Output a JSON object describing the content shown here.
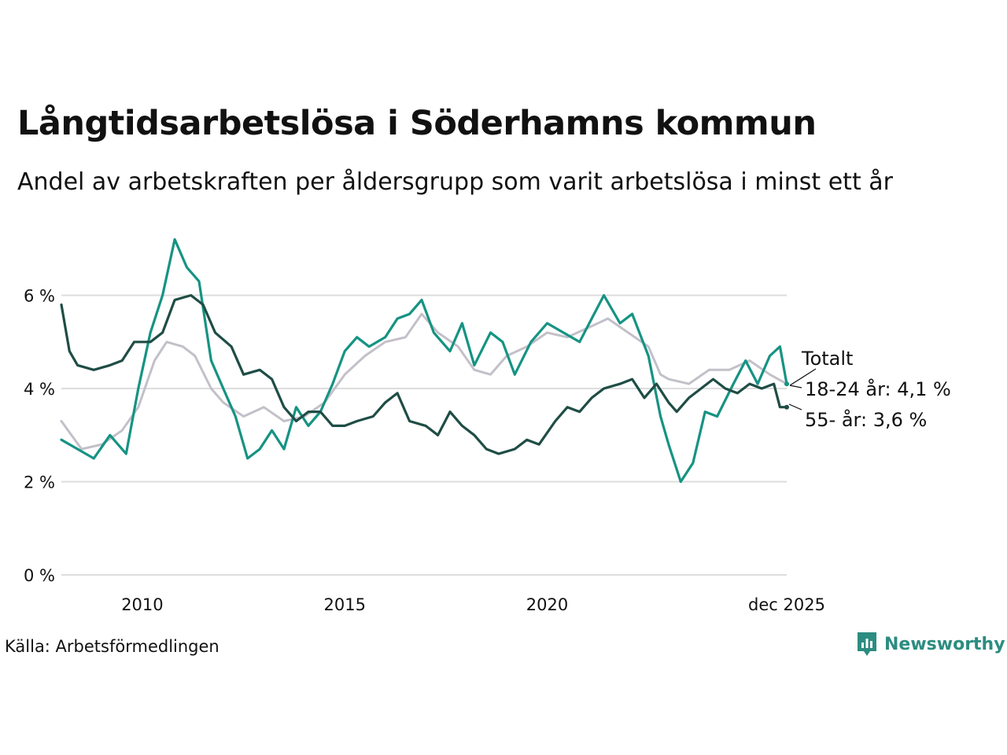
{
  "title": "Långtidsarbetslösa i Söderhamns kommun",
  "subtitle": "Andel av arbetskraften per åldersgrupp som varit arbetslösa i minst ett år",
  "source": "Källa: Arbetsförmedlingen",
  "brand": "Newsworthy",
  "colors": {
    "totalt": "#c3c0c9",
    "age_18_24": "#169383",
    "age_55": "#1f4d45",
    "grid": "#dddddd",
    "brand": "#2c8c80"
  },
  "chart_data": {
    "type": "line",
    "title": "Långtidsarbetslösa i Söderhamns kommun",
    "xlabel": "",
    "ylabel": "",
    "ylim": [
      0,
      7.5
    ],
    "yticks": [
      0,
      2,
      4,
      6
    ],
    "ytick_labels": [
      "0 %",
      "2 %",
      "4 %",
      "6 %"
    ],
    "xticks": [
      2010,
      2015,
      2020,
      2025.917
    ],
    "xtick_labels": [
      "2010",
      "2015",
      "2020",
      "dec 2025"
    ],
    "grid": true,
    "end_labels": {
      "totalt": "Totalt",
      "age_18_24": "18-24 år: 4,1 %",
      "age_55": "55- år: 3,6 %"
    },
    "series": [
      {
        "name": "Totalt",
        "key": "totalt",
        "points": [
          [
            2008.0,
            3.3
          ],
          [
            2008.5,
            2.7
          ],
          [
            2009.0,
            2.8
          ],
          [
            2009.5,
            3.1
          ],
          [
            2009.9,
            3.6
          ],
          [
            2010.3,
            4.6
          ],
          [
            2010.6,
            5.0
          ],
          [
            2011.0,
            4.9
          ],
          [
            2011.3,
            4.7
          ],
          [
            2011.7,
            4.0
          ],
          [
            2012.0,
            3.7
          ],
          [
            2012.5,
            3.4
          ],
          [
            2013.0,
            3.6
          ],
          [
            2013.5,
            3.3
          ],
          [
            2014.0,
            3.4
          ],
          [
            2014.5,
            3.7
          ],
          [
            2015.0,
            4.3
          ],
          [
            2015.5,
            4.7
          ],
          [
            2016.0,
            5.0
          ],
          [
            2016.5,
            5.1
          ],
          [
            2016.9,
            5.6
          ],
          [
            2017.3,
            5.2
          ],
          [
            2017.8,
            4.9
          ],
          [
            2018.2,
            4.4
          ],
          [
            2018.6,
            4.3
          ],
          [
            2019.0,
            4.7
          ],
          [
            2019.5,
            4.9
          ],
          [
            2020.0,
            5.2
          ],
          [
            2020.5,
            5.1
          ],
          [
            2021.0,
            5.3
          ],
          [
            2021.5,
            5.5
          ],
          [
            2022.0,
            5.2
          ],
          [
            2022.5,
            4.9
          ],
          [
            2022.8,
            4.3
          ],
          [
            2023.0,
            4.2
          ],
          [
            2023.5,
            4.1
          ],
          [
            2024.0,
            4.4
          ],
          [
            2024.5,
            4.4
          ],
          [
            2025.0,
            4.6
          ],
          [
            2025.5,
            4.3
          ],
          [
            2025.917,
            4.1
          ]
        ]
      },
      {
        "name": "18-24 år",
        "key": "age_18_24",
        "points": [
          [
            2008.0,
            2.9
          ],
          [
            2008.4,
            2.7
          ],
          [
            2008.8,
            2.5
          ],
          [
            2009.2,
            3.0
          ],
          [
            2009.6,
            2.6
          ],
          [
            2009.9,
            4.0
          ],
          [
            2010.2,
            5.2
          ],
          [
            2010.5,
            6.0
          ],
          [
            2010.8,
            7.2
          ],
          [
            2011.1,
            6.6
          ],
          [
            2011.4,
            6.3
          ],
          [
            2011.7,
            4.6
          ],
          [
            2012.0,
            4.0
          ],
          [
            2012.3,
            3.4
          ],
          [
            2012.6,
            2.5
          ],
          [
            2012.9,
            2.7
          ],
          [
            2013.2,
            3.1
          ],
          [
            2013.5,
            2.7
          ],
          [
            2013.8,
            3.6
          ],
          [
            2014.1,
            3.2
          ],
          [
            2014.4,
            3.5
          ],
          [
            2014.7,
            4.1
          ],
          [
            2015.0,
            4.8
          ],
          [
            2015.3,
            5.1
          ],
          [
            2015.6,
            4.9
          ],
          [
            2016.0,
            5.1
          ],
          [
            2016.3,
            5.5
          ],
          [
            2016.6,
            5.6
          ],
          [
            2016.9,
            5.9
          ],
          [
            2017.2,
            5.2
          ],
          [
            2017.6,
            4.8
          ],
          [
            2017.9,
            5.4
          ],
          [
            2018.2,
            4.5
          ],
          [
            2018.6,
            5.2
          ],
          [
            2018.9,
            5.0
          ],
          [
            2019.2,
            4.3
          ],
          [
            2019.6,
            5.0
          ],
          [
            2020.0,
            5.4
          ],
          [
            2020.4,
            5.2
          ],
          [
            2020.8,
            5.0
          ],
          [
            2021.1,
            5.5
          ],
          [
            2021.4,
            6.0
          ],
          [
            2021.8,
            5.4
          ],
          [
            2022.1,
            5.6
          ],
          [
            2022.5,
            4.7
          ],
          [
            2022.8,
            3.4
          ],
          [
            2023.0,
            2.8
          ],
          [
            2023.3,
            2.0
          ],
          [
            2023.6,
            2.4
          ],
          [
            2023.9,
            3.5
          ],
          [
            2024.2,
            3.4
          ],
          [
            2024.6,
            4.1
          ],
          [
            2024.9,
            4.6
          ],
          [
            2025.2,
            4.1
          ],
          [
            2025.5,
            4.7
          ],
          [
            2025.75,
            4.9
          ],
          [
            2025.917,
            4.1
          ]
        ]
      },
      {
        "name": "55- år",
        "key": "age_55",
        "points": [
          [
            2008.0,
            5.8
          ],
          [
            2008.2,
            4.8
          ],
          [
            2008.4,
            4.5
          ],
          [
            2008.8,
            4.4
          ],
          [
            2009.2,
            4.5
          ],
          [
            2009.5,
            4.6
          ],
          [
            2009.8,
            5.0
          ],
          [
            2010.2,
            5.0
          ],
          [
            2010.5,
            5.2
          ],
          [
            2010.8,
            5.9
          ],
          [
            2011.2,
            6.0
          ],
          [
            2011.5,
            5.8
          ],
          [
            2011.8,
            5.2
          ],
          [
            2012.2,
            4.9
          ],
          [
            2012.5,
            4.3
          ],
          [
            2012.9,
            4.4
          ],
          [
            2013.2,
            4.2
          ],
          [
            2013.5,
            3.6
          ],
          [
            2013.8,
            3.3
          ],
          [
            2014.1,
            3.5
          ],
          [
            2014.4,
            3.5
          ],
          [
            2014.7,
            3.2
          ],
          [
            2015.0,
            3.2
          ],
          [
            2015.3,
            3.3
          ],
          [
            2015.7,
            3.4
          ],
          [
            2016.0,
            3.7
          ],
          [
            2016.3,
            3.9
          ],
          [
            2016.6,
            3.3
          ],
          [
            2017.0,
            3.2
          ],
          [
            2017.3,
            3.0
          ],
          [
            2017.6,
            3.5
          ],
          [
            2017.9,
            3.2
          ],
          [
            2018.2,
            3.0
          ],
          [
            2018.5,
            2.7
          ],
          [
            2018.8,
            2.6
          ],
          [
            2019.2,
            2.7
          ],
          [
            2019.5,
            2.9
          ],
          [
            2019.8,
            2.8
          ],
          [
            2020.2,
            3.3
          ],
          [
            2020.5,
            3.6
          ],
          [
            2020.8,
            3.5
          ],
          [
            2021.1,
            3.8
          ],
          [
            2021.4,
            4.0
          ],
          [
            2021.8,
            4.1
          ],
          [
            2022.1,
            4.2
          ],
          [
            2022.4,
            3.8
          ],
          [
            2022.7,
            4.1
          ],
          [
            2023.0,
            3.7
          ],
          [
            2023.2,
            3.5
          ],
          [
            2023.5,
            3.8
          ],
          [
            2023.8,
            4.0
          ],
          [
            2024.1,
            4.2
          ],
          [
            2024.4,
            4.0
          ],
          [
            2024.7,
            3.9
          ],
          [
            2025.0,
            4.1
          ],
          [
            2025.3,
            4.0
          ],
          [
            2025.6,
            4.1
          ],
          [
            2025.75,
            3.6
          ],
          [
            2025.917,
            3.6
          ]
        ]
      }
    ]
  }
}
